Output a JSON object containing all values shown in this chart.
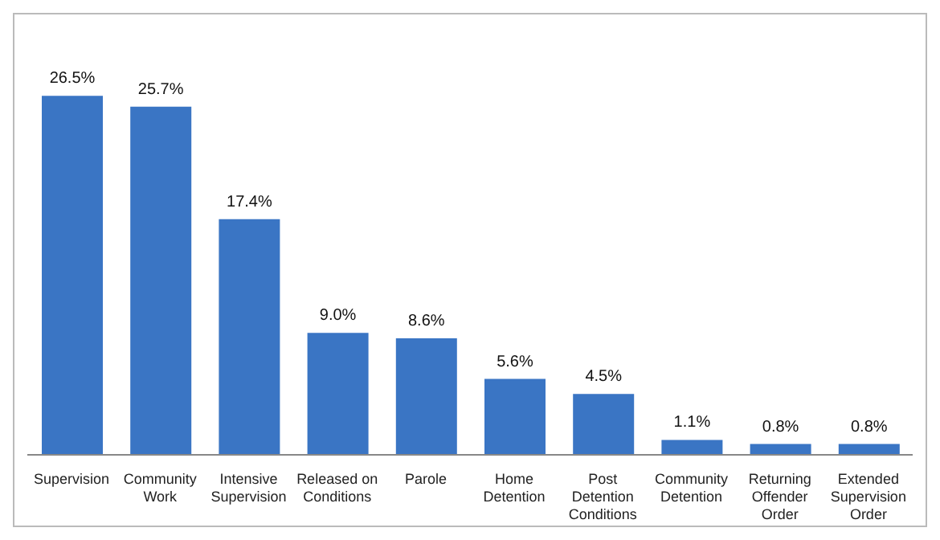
{
  "chart_data": {
    "type": "bar",
    "categories": [
      "Supervision",
      "Community Work",
      "Intensive Supervision",
      "Released on Conditions",
      "Parole",
      "Home Detention",
      "Post Detention Conditions",
      "Community Detention",
      "Returning Offender Order",
      "Extended Supervision Order"
    ],
    "values": [
      26.5,
      25.7,
      17.4,
      9.0,
      8.6,
      5.6,
      4.5,
      1.1,
      0.8,
      0.8
    ],
    "value_labels": [
      "26.5%",
      "25.7%",
      "17.4%",
      "9.0%",
      "8.6%",
      "5.6%",
      "4.5%",
      "1.1%",
      "0.8%",
      "0.8%"
    ],
    "color": "#3a75c4",
    "tick_labels": "x",
    "grid": false,
    "legend": false
  }
}
